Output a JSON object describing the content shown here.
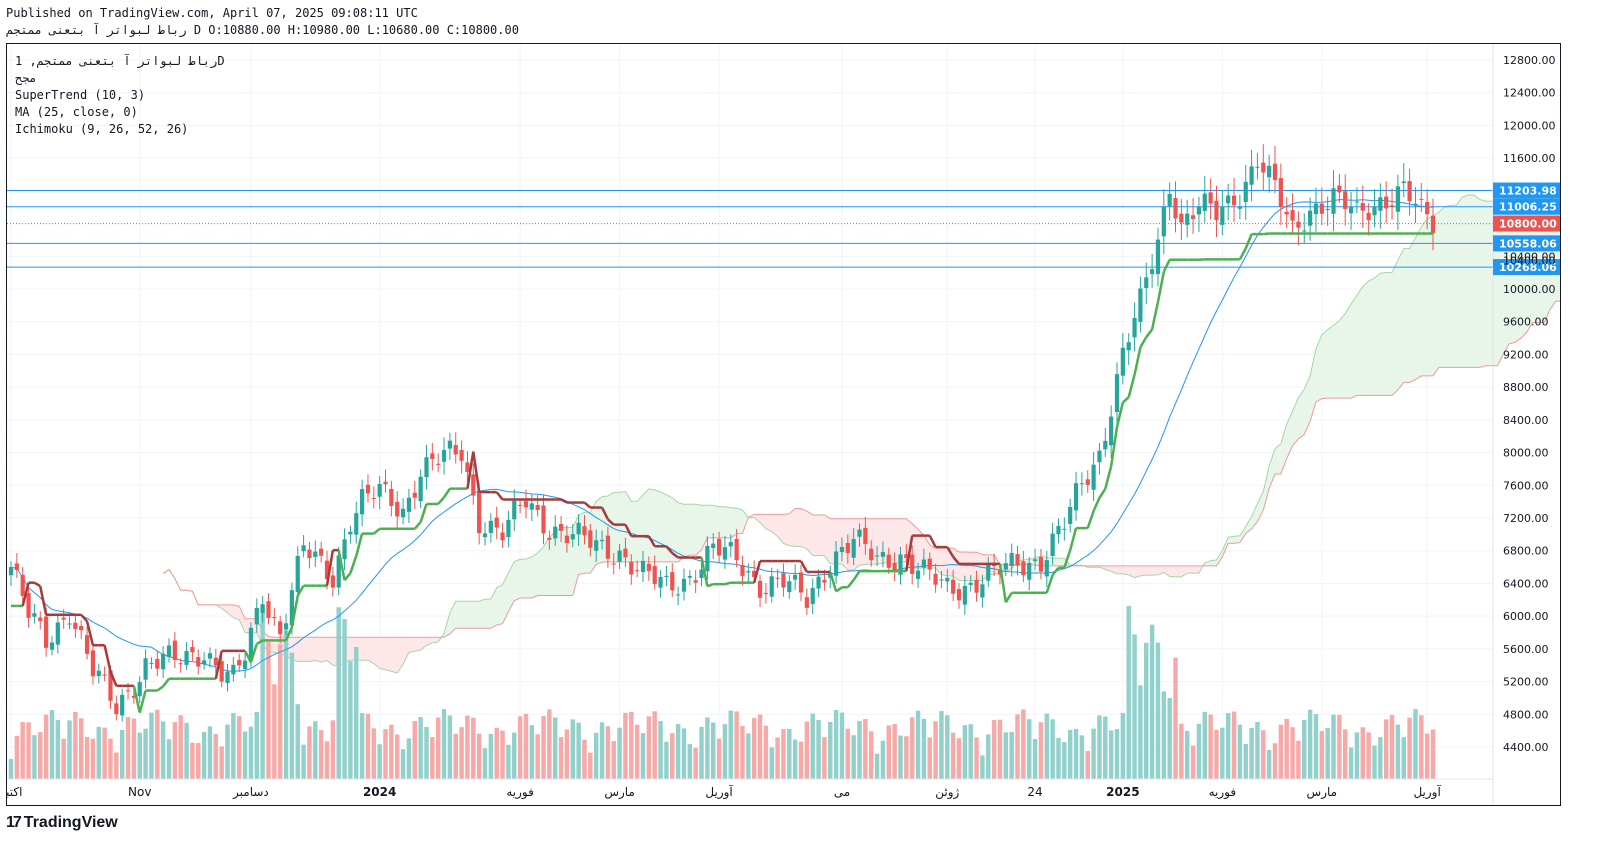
{
  "header": {
    "published": "Published on TradingView.com, April 07, 2025 09:08:11 UTC",
    "symbol_line": "رباط لبواتر آ بتعنی ممتجم D O:10880.00 H:10980.00 L:10680.00 C:10800.00"
  },
  "legend": {
    "symbol": "رباط لبواتر آ بتعنی ممتجم, 1D",
    "sub": "مجح",
    "indicators": [
      "SuperTrend (10, 3)",
      "MA (25, close, 0)",
      "Ichimoku (9, 26, 52, 26)"
    ]
  },
  "footer": {
    "brand": "TradingView",
    "logo": "tv-logo-icon"
  },
  "colors": {
    "up": "#26a69a",
    "down": "#ef5350",
    "supertrend_up": "#4caf50",
    "supertrend_down": "#a53a3a",
    "ma": "#2196f3",
    "hline": "#2196f3",
    "cloud_up": "#e8f5e9",
    "cloud_down": "#fde7e9"
  },
  "chart_data": {
    "type": "candlestick",
    "timeframe": "1D",
    "ylim": [
      4000,
      12900
    ],
    "y_ticks": [
      4400,
      4800,
      5200,
      5600,
      6000,
      6400,
      6800,
      7200,
      7600,
      8000,
      8400,
      8800,
      9200,
      9600,
      10000,
      10400,
      11600,
      12000,
      12400,
      12800
    ],
    "x_labels": [
      {
        "label": "اکتبر",
        "bar": 0
      },
      {
        "label": "Nov",
        "bar": 22
      },
      {
        "label": "دسامبر",
        "bar": 41
      },
      {
        "label": "2024",
        "bar": 63
      },
      {
        "label": "فوریه",
        "bar": 87
      },
      {
        "label": "مارس",
        "bar": 104
      },
      {
        "label": "آوریل",
        "bar": 121
      },
      {
        "label": "می",
        "bar": 142
      },
      {
        "label": "ژوئن",
        "bar": 160
      },
      {
        "label": "24",
        "bar": 175
      },
      {
        "label": "2025",
        "bar": 190
      },
      {
        "label": "فوریه",
        "bar": 207
      },
      {
        "label": "مارس",
        "bar": 224
      },
      {
        "label": "آوریل",
        "bar": 242
      }
    ],
    "price_lines": [
      {
        "value": 11203.98,
        "label": "11203.98"
      },
      {
        "value": 11006.25,
        "label": "11006.25"
      },
      {
        "value": 10558.06,
        "label": "10558.06"
      },
      {
        "value": 10268.06,
        "label": "10268.06"
      }
    ],
    "last_price": {
      "value": 10800,
      "label": "10800.00"
    },
    "overlap_label": "10400.00",
    "anchors": [
      [
        0,
        6600
      ],
      [
        3,
        6000
      ],
      [
        6,
        5700
      ],
      [
        10,
        6100
      ],
      [
        14,
        5300
      ],
      [
        18,
        4900
      ],
      [
        23,
        5400
      ],
      [
        28,
        5450
      ],
      [
        33,
        5600
      ],
      [
        36,
        5300
      ],
      [
        38,
        5200
      ],
      [
        40,
        5500
      ],
      [
        43,
        6300
      ],
      [
        46,
        5800
      ],
      [
        50,
        6800
      ],
      [
        55,
        6500
      ],
      [
        58,
        7200
      ],
      [
        60,
        7400
      ],
      [
        63,
        7500
      ],
      [
        67,
        7300
      ],
      [
        70,
        7800
      ],
      [
        73,
        7900
      ],
      [
        77,
        8000
      ],
      [
        80,
        7200
      ],
      [
        84,
        7000
      ],
      [
        88,
        7400
      ],
      [
        92,
        7100
      ],
      [
        95,
        7000
      ],
      [
        100,
        6850
      ],
      [
        104,
        6800
      ],
      [
        108,
        6500
      ],
      [
        112,
        6350
      ],
      [
        116,
        6500
      ],
      [
        120,
        6800
      ],
      [
        124,
        6700
      ],
      [
        128,
        6400
      ],
      [
        132,
        6400
      ],
      [
        136,
        6200
      ],
      [
        140,
        6700
      ],
      [
        144,
        6900
      ],
      [
        148,
        6700
      ],
      [
        152,
        6750
      ],
      [
        156,
        6500
      ],
      [
        160,
        6350
      ],
      [
        164,
        6400
      ],
      [
        168,
        6500
      ],
      [
        172,
        6650
      ],
      [
        176,
        6700
      ],
      [
        180,
        7100
      ],
      [
        183,
        7600
      ],
      [
        186,
        8000
      ],
      [
        188,
        8600
      ],
      [
        190,
        9200
      ],
      [
        193,
        9800
      ],
      [
        196,
        10600
      ],
      [
        198,
        11300
      ],
      [
        200,
        10800
      ],
      [
        203,
        11000
      ],
      [
        206,
        10900
      ],
      [
        210,
        11200
      ],
      [
        213,
        11600
      ],
      [
        216,
        11200
      ],
      [
        219,
        10700
      ],
      [
        222,
        11000
      ],
      [
        226,
        11100
      ],
      [
        230,
        10900
      ],
      [
        234,
        11100
      ],
      [
        238,
        11200
      ],
      [
        241,
        10900
      ],
      [
        243,
        10800
      ]
    ],
    "volume_note": "volume histogram per bar",
    "supertrend": {
      "period": 10,
      "multiplier": 3
    },
    "ma": {
      "period": 25,
      "source": "close"
    },
    "ichimoku": {
      "conversion": 9,
      "base": 26,
      "lagging": 52,
      "displacement": 26
    }
  }
}
